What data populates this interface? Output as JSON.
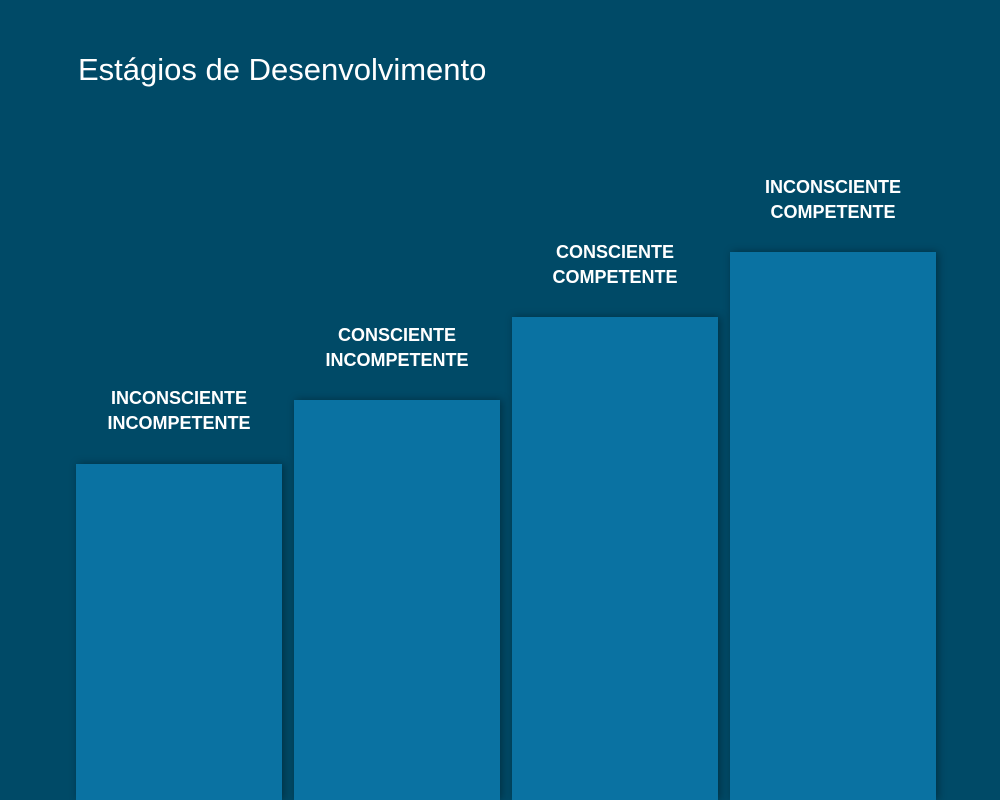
{
  "title": "Estágios de Desenvolvimento",
  "stages": [
    {
      "line1": "INCONSCIENTE",
      "line2": "INCOMPETENTE",
      "level": 1
    },
    {
      "line1": "CONSCIENTE",
      "line2": "INCOMPETENTE",
      "level": 2
    },
    {
      "line1": "CONSCIENTE",
      "line2": "COMPETENTE",
      "level": 3
    },
    {
      "line1": "INCONSCIENTE",
      "line2": "COMPETENTE",
      "level": 4
    }
  ],
  "colors": {
    "background": "#004a67",
    "bar": "#0a72a2",
    "text": "#ffffff"
  }
}
